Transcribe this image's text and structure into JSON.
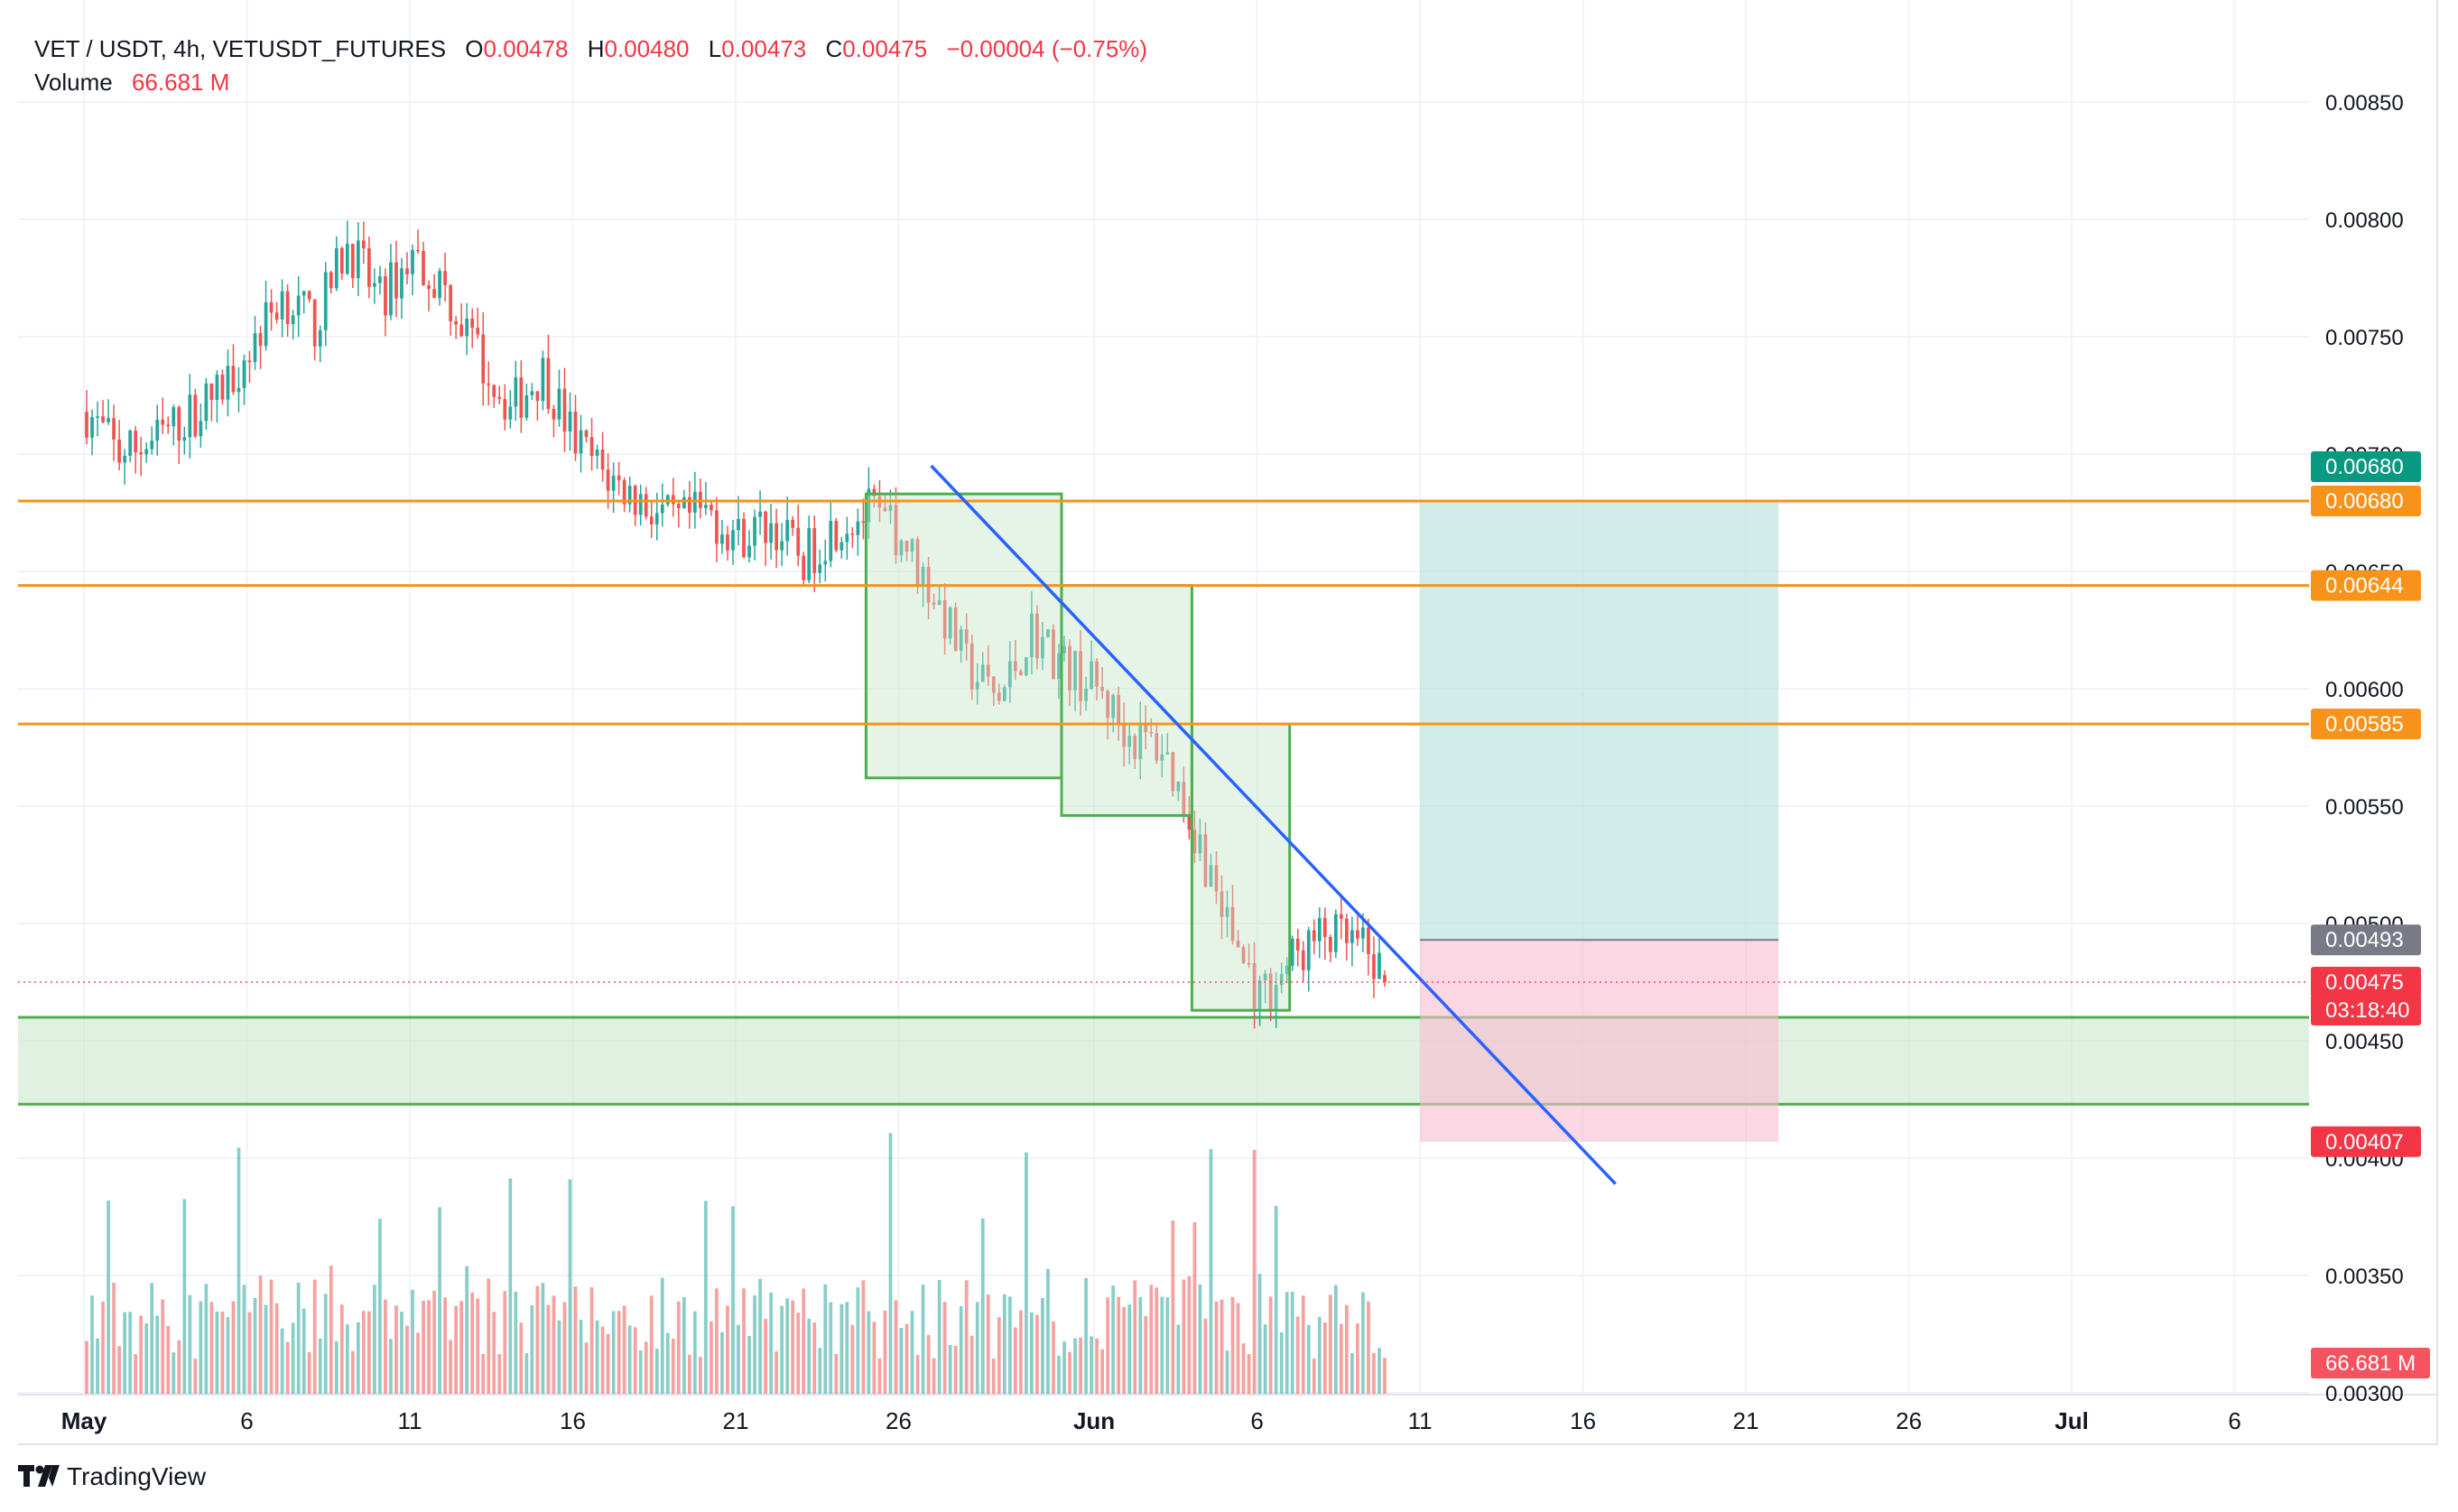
{
  "header": {
    "symbol": "VET / USDT, 4h, VETUSDT_FUTURES",
    "o_label": "O",
    "o_value": "0.00478",
    "h_label": "H",
    "h_value": "0.00480",
    "l_label": "L",
    "l_value": "0.00473",
    "c_label": "C",
    "c_value": "0.00475",
    "change": "−0.00004 (−0.75%)",
    "volume_label": "Volume",
    "volume_value": "66.681 M"
  },
  "brand": {
    "name": "TradingView"
  },
  "colors": {
    "up": "#26a69a",
    "down": "#ef5350",
    "level": "#f7931a",
    "trendline": "#2962ff",
    "box": "#4caf50",
    "target_fill": "#b2dfdb",
    "stop_fill": "#f8bbd0",
    "support": "#4caf50"
  },
  "chart_data": {
    "type": "candlestick",
    "interval": "4h",
    "y_axis": {
      "range": [
        0.0028,
        0.0088
      ],
      "ticks": [
        "0.00850",
        "0.00800",
        "0.00750",
        "0.00700",
        "0.00650",
        "0.00600",
        "0.00550",
        "0.00500",
        "0.00450",
        "0.00400",
        "0.00350",
        "0.00300"
      ]
    },
    "x_axis": {
      "ticks": [
        "May",
        "6",
        "11",
        "16",
        "21",
        "26",
        "Jun",
        "6",
        "11",
        "16",
        "21",
        "26",
        "Jul",
        "6"
      ]
    },
    "anchor_closes": [
      [
        "05-01",
        0.00718
      ],
      [
        "05-02",
        0.007
      ],
      [
        "05-03",
        0.00705
      ],
      [
        "05-04",
        0.00715
      ],
      [
        "05-05",
        0.00725
      ],
      [
        "05-06",
        0.00745
      ],
      [
        "05-07",
        0.00768
      ],
      [
        "05-08",
        0.00755
      ],
      [
        "05-09",
        0.0079
      ],
      [
        "05-10",
        0.00765
      ],
      [
        "05-11",
        0.00785
      ],
      [
        "05-12",
        0.0077
      ],
      [
        "05-13",
        0.00742
      ],
      [
        "05-14",
        0.0072
      ],
      [
        "05-15",
        0.00735
      ],
      [
        "05-16",
        0.00705
      ],
      [
        "05-17",
        0.0069
      ],
      [
        "05-18",
        0.0068
      ],
      [
        "05-19",
        0.0067
      ],
      [
        "05-20",
        0.00675
      ],
      [
        "05-21",
        0.00665
      ],
      [
        "05-22",
        0.0067
      ],
      [
        "05-23",
        0.00655
      ],
      [
        "05-24",
        0.0067
      ],
      [
        "05-25",
        0.00675
      ],
      [
        "05-26",
        0.00665
      ],
      [
        "05-27",
        0.0064
      ],
      [
        "05-28",
        0.0061
      ],
      [
        "05-29",
        0.00595
      ],
      [
        "05-30",
        0.00625
      ],
      [
        "05-31",
        0.0061
      ],
      [
        "06-01",
        0.006
      ],
      [
        "06-02",
        0.0058
      ],
      [
        "06-03",
        0.00575
      ],
      [
        "06-04",
        0.0054
      ],
      [
        "06-05",
        0.005
      ],
      [
        "06-06",
        0.00468
      ],
      [
        "06-07",
        0.00485
      ],
      [
        "06-08",
        0.00495
      ],
      [
        "06-09",
        0.0049
      ],
      [
        "06-10",
        0.00475
      ]
    ],
    "last": {
      "open": 0.00478,
      "high": 0.0048,
      "low": 0.00473,
      "close": 0.00475,
      "change": -4e-05,
      "change_pct": -0.75
    },
    "volume": {
      "last": "66.681 M"
    },
    "levels": [
      {
        "price": 0.0068,
        "label": "0.00680"
      },
      {
        "price": 0.00644,
        "label": "0.00644"
      },
      {
        "price": 0.00585,
        "label": "0.00585"
      }
    ],
    "support_zone": [
      0.00423,
      0.0046
    ],
    "trendline": {
      "from": [
        "05-27",
        0.00695
      ],
      "to": [
        "06-17",
        0.00389
      ]
    },
    "pattern_boxes": [
      {
        "from": "05-25",
        "to": "05-31",
        "top": 0.00683,
        "bottom": 0.00562
      },
      {
        "from": "05-31",
        "to": "06-04",
        "top": 0.00644,
        "bottom": 0.00546
      },
      {
        "from": "06-04",
        "to": "06-07",
        "top": 0.00585,
        "bottom": 0.00463
      }
    ],
    "position": {
      "type": "long",
      "from": "06-11",
      "to": "06-22",
      "entry": 0.00493,
      "target": 0.0068,
      "stop": 0.00407,
      "target_label": "0.00680",
      "entry_label": "0.00493",
      "stop_label": "0.00407"
    },
    "price_tags": [
      {
        "label": "0.00680",
        "kind": "target"
      },
      {
        "label": "0.00680",
        "kind": "level"
      },
      {
        "label": "0.00644",
        "kind": "level"
      },
      {
        "label": "0.00585",
        "kind": "level"
      },
      {
        "label": "0.00493",
        "kind": "entry"
      },
      {
        "label": "0.00475",
        "kind": "last"
      },
      {
        "label": "03:18:40",
        "kind": "countdown"
      },
      {
        "label": "0.00407",
        "kind": "stop"
      },
      {
        "label": "66.681 M",
        "kind": "volume"
      }
    ]
  }
}
